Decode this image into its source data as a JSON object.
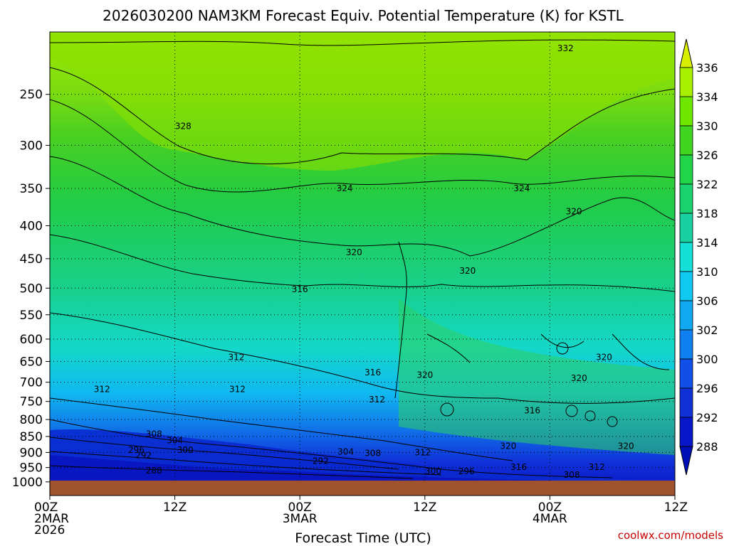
{
  "chart_data": {
    "type": "contour",
    "title": "2026030200 NAM3KM Forecast Equiv. Potential Temperature (K) for KSTL",
    "xlabel": "Forecast Time (UTC)",
    "ylabel": "",
    "credit": "coolwx.com/models",
    "y_ticks": [
      "250",
      "300",
      "350",
      "400",
      "450",
      "500",
      "550",
      "600",
      "650",
      "700",
      "750",
      "800",
      "850",
      "900",
      "950",
      "1000"
    ],
    "x_ticks": [
      {
        "hour": 0,
        "line1": "00Z",
        "line2": "2MAR",
        "line3": "2026"
      },
      {
        "hour": 12,
        "line1": "12Z",
        "line2": "",
        "line3": ""
      },
      {
        "hour": 24,
        "line1": "00Z",
        "line2": "3MAR",
        "line3": ""
      },
      {
        "hour": 36,
        "line1": "12Z",
        "line2": "",
        "line3": ""
      },
      {
        "hour": 48,
        "line1": "00Z",
        "line2": "4MAR",
        "line3": ""
      },
      {
        "hour": 60,
        "line1": "12Z",
        "line2": "",
        "line3": ""
      }
    ],
    "colorbar_levels": [
      "336",
      "334",
      "330",
      "326",
      "322",
      "318",
      "314",
      "310",
      "306",
      "302",
      "300",
      "296",
      "292",
      "288"
    ],
    "colorbar_colors": [
      "#d8f000",
      "#a8f000",
      "#6ee800",
      "#3fd520",
      "#22d548",
      "#1ad270",
      "#18d0a0",
      "#14e0d8",
      "#10c8f0",
      "#10a8f0",
      "#1080f0",
      "#1050e8",
      "#1030d8",
      "#0818c8",
      "#0010b8"
    ],
    "contour_labels": [
      {
        "text": "332",
        "hour": 49.5,
        "p": 212
      },
      {
        "text": "328",
        "hour": 12.8,
        "p": 280
      },
      {
        "text": "324",
        "hour": 28.3,
        "p": 350
      },
      {
        "text": "324",
        "hour": 45.3,
        "p": 350
      },
      {
        "text": "320",
        "hour": 50.3,
        "p": 380
      },
      {
        "text": "320",
        "hour": 29.2,
        "p": 440
      },
      {
        "text": "320",
        "hour": 40.1,
        "p": 470
      },
      {
        "text": "316",
        "hour": 24.0,
        "p": 502
      },
      {
        "text": "312",
        "hour": 17.9,
        "p": 640
      },
      {
        "text": "316",
        "hour": 31.0,
        "p": 676
      },
      {
        "text": "320",
        "hour": 36.0,
        "p": 682
      },
      {
        "text": "320",
        "hour": 53.2,
        "p": 640
      },
      {
        "text": "320",
        "hour": 50.8,
        "p": 690
      },
      {
        "text": "312",
        "hour": 5.0,
        "p": 718
      },
      {
        "text": "312",
        "hour": 18.0,
        "p": 718
      },
      {
        "text": "312",
        "hour": 31.4,
        "p": 745
      },
      {
        "text": "316",
        "hour": 46.3,
        "p": 775
      },
      {
        "text": "308",
        "hour": 10.0,
        "p": 843
      },
      {
        "text": "304",
        "hour": 12.0,
        "p": 862
      },
      {
        "text": "296",
        "hour": 8.3,
        "p": 892
      },
      {
        "text": "300",
        "hour": 13.0,
        "p": 892
      },
      {
        "text": "292",
        "hour": 9.0,
        "p": 910
      },
      {
        "text": "304",
        "hour": 28.4,
        "p": 898
      },
      {
        "text": "308",
        "hour": 31.0,
        "p": 903
      },
      {
        "text": "312",
        "hour": 35.8,
        "p": 900
      },
      {
        "text": "320",
        "hour": 44.0,
        "p": 880
      },
      {
        "text": "320",
        "hour": 55.3,
        "p": 880
      },
      {
        "text": "292",
        "hour": 26.0,
        "p": 928
      },
      {
        "text": "288",
        "hour": 10.0,
        "p": 960
      },
      {
        "text": "316",
        "hour": 45.0,
        "p": 948
      },
      {
        "text": "312",
        "hour": 52.5,
        "p": 948
      },
      {
        "text": "300",
        "hour": 36.8,
        "p": 963
      },
      {
        "text": "296",
        "hour": 40.0,
        "p": 963
      },
      {
        "text": "308",
        "hour": 50.1,
        "p": 975
      }
    ]
  }
}
